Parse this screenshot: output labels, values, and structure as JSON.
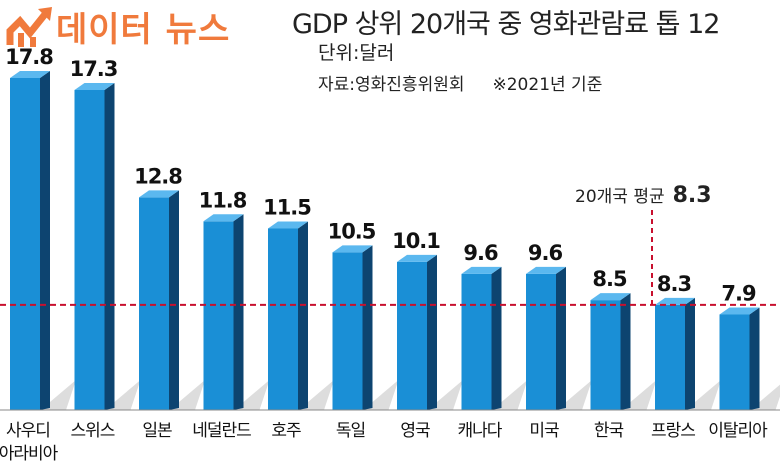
{
  "logo": {
    "text": "데이터 뉴스"
  },
  "chart_data": {
    "type": "bar",
    "title": "GDP 상위 20개국 중 영화관람료 톱 12",
    "unit": "단위:달러",
    "source": "자료:영화진흥위원회",
    "note": "※2021년 기준",
    "categories": [
      "사우디 아라비아",
      "스위스",
      "일본",
      "네덜란드",
      "호주",
      "독일",
      "영국",
      "캐나다",
      "미국",
      "한국",
      "프랑스",
      "이탈리아"
    ],
    "values": [
      17.8,
      17.3,
      12.8,
      11.8,
      11.5,
      10.5,
      10.1,
      9.6,
      9.6,
      8.5,
      8.3,
      7.9
    ],
    "value_labels": [
      "17.8",
      "17.3",
      "12.8",
      "11.8",
      "11.5",
      "10.5",
      "10.1",
      "9.6",
      "9.6",
      "8.5",
      "8.3",
      "7.9"
    ],
    "reference_line": {
      "label": "20개국 평균",
      "value": 8.3,
      "value_label": "8.3"
    },
    "ylim": [
      3.9,
      18.2
    ],
    "colors": {
      "front": "#1a8fd6",
      "side": "#0d4470",
      "top": "#5bb8ef",
      "avg_line": "#c8102e",
      "logo": "#f07a3c"
    }
  }
}
